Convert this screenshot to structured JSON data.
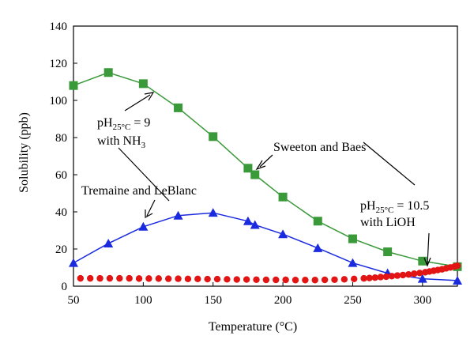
{
  "chart_data": {
    "type": "line",
    "xlabel": "Temperature (°C)",
    "ylabel": "Solubility (ppb)",
    "xlim": [
      50,
      325
    ],
    "ylim": [
      0,
      140
    ],
    "xticks": [
      50,
      100,
      150,
      200,
      250,
      300
    ],
    "yticks": [
      0,
      20,
      40,
      60,
      80,
      100,
      120,
      140
    ],
    "grid": false,
    "legend": "none",
    "series": [
      {
        "marker": "square",
        "color": "#3a9a3a",
        "x": [
          50,
          75,
          100,
          125,
          150,
          175,
          180,
          200,
          225,
          250,
          275,
          300,
          325
        ],
        "y": [
          108,
          115,
          109,
          96,
          80.5,
          63.5,
          60,
          48,
          35,
          25.5,
          18.5,
          13.5,
          10.5
        ]
      },
      {
        "marker": "triangle",
        "color": "#1a2adf",
        "x": [
          50,
          75,
          100,
          125,
          150,
          175,
          180,
          200,
          225,
          250,
          275,
          300,
          325
        ],
        "y": [
          12.5,
          23,
          32,
          38,
          39.5,
          35,
          33,
          28,
          20.5,
          12.5,
          7,
          4,
          3
        ]
      },
      {
        "marker": "circle",
        "color": "#e31414",
        "x": [
          55,
          62,
          69,
          76,
          83,
          90,
          97,
          104,
          111,
          118,
          125,
          132,
          139,
          146,
          153,
          160,
          167,
          174,
          181,
          188,
          195,
          202,
          209,
          216,
          223,
          230,
          237,
          244,
          251,
          258,
          262,
          266,
          270,
          274,
          278,
          282,
          286,
          290,
          294,
          298,
          302,
          305,
          308,
          311,
          314,
          317,
          320,
          323,
          325
        ],
        "y": [
          4.2,
          4.2,
          4.2,
          4.2,
          4.2,
          4.2,
          4.1,
          4.1,
          4.1,
          4.0,
          4.0,
          3.9,
          3.9,
          3.8,
          3.8,
          3.7,
          3.6,
          3.6,
          3.5,
          3.4,
          3.4,
          3.4,
          3.3,
          3.3,
          3.3,
          3.4,
          3.5,
          3.7,
          3.9,
          4.2,
          4.4,
          4.6,
          4.9,
          5.1,
          5.4,
          5.7,
          6.0,
          6.3,
          6.7,
          7.1,
          7.5,
          7.9,
          8.3,
          8.7,
          9.1,
          9.6,
          10.1,
          10.6,
          11.0
        ]
      }
    ],
    "annotations": [
      {
        "main": "pH",
        "sub": "25°C",
        "rest": " = 9"
      },
      {
        "main": "with NH",
        "sub": "3",
        "rest": ""
      },
      {
        "main": "Sweeton and Baes",
        "sub": "",
        "rest": ""
      },
      {
        "main": "Tremaine and LeBlanc",
        "sub": "",
        "rest": ""
      },
      {
        "main": "pH",
        "sub": "25°C",
        "rest": " = 10.5"
      },
      {
        "main": "with LiOH",
        "sub": "",
        "rest": ""
      }
    ]
  }
}
